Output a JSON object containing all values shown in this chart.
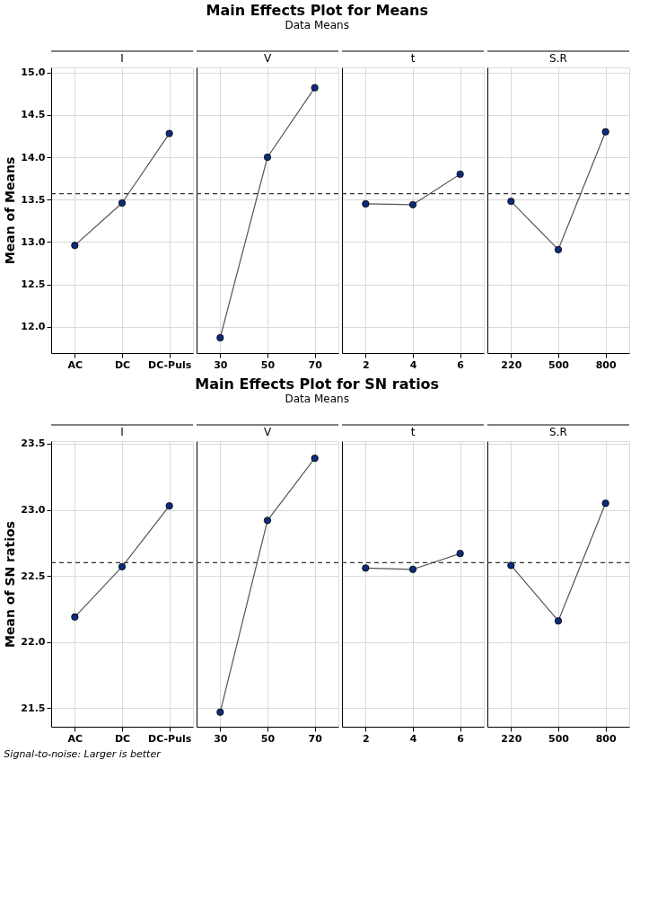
{
  "chart_data": [
    {
      "type": "line",
      "title": "Main Effects Plot for Means",
      "subtitle": "Data Means",
      "ylabel": "Mean of Means",
      "categories": [
        "AC",
        "DC",
        "DC-Puls",
        "30",
        "50",
        "70",
        "2",
        "4",
        "6",
        "220",
        "500",
        "800"
      ],
      "series": [
        {
          "color": "#0b2d7a",
          "values": [
            12.96,
            13.46,
            14.28,
            null,
            null,
            null,
            null,
            null,
            null,
            null,
            null,
            null
          ]
        },
        {
          "color": "#0b2d7a",
          "values": [
            null,
            null,
            null,
            11.87,
            14.0,
            14.82,
            null,
            null,
            null,
            null,
            null,
            null
          ]
        },
        {
          "color": "#0b2d7a",
          "values": [
            null,
            null,
            null,
            null,
            null,
            null,
            13.45,
            13.44,
            13.8,
            null,
            null,
            null
          ]
        },
        {
          "color": "#0b2d7a",
          "values": [
            null,
            null,
            null,
            null,
            null,
            null,
            null,
            null,
            null,
            13.48,
            12.91,
            14.3
          ]
        }
      ],
      "ylim": [
        11.69,
        15.06
      ],
      "yticks": [
        {
          "value": 12,
          "label": "12.0"
        },
        12.5,
        {
          "value": 13,
          "label": "13.0"
        },
        13.5,
        {
          "value": 14,
          "label": "14.0"
        },
        14.5,
        {
          "value": 15,
          "label": "15.0"
        }
      ],
      "grid": true,
      "marker": "circle",
      "line_style": "solid",
      "ref_lines": [
        {
          "axis": "y",
          "value": 13.57,
          "color": "#333333",
          "line_style": "dashed"
        }
      ],
      "annotations": [
        "I",
        "V",
        "t",
        "S.R"
      ]
    },
    {
      "type": "line",
      "title": "Main Effects Plot for SN ratios",
      "subtitle": "Data Means",
      "ylabel": "Mean of SN ratios",
      "categories": [
        "AC",
        "DC",
        "DC-Puls",
        "30",
        "50",
        "70",
        "2",
        "4",
        "6",
        "220",
        "500",
        "800"
      ],
      "series": [
        {
          "color": "#0b2d7a",
          "values": [
            22.19,
            22.57,
            23.03,
            null,
            null,
            null,
            null,
            null,
            null,
            null,
            null,
            null
          ]
        },
        {
          "color": "#0b2d7a",
          "values": [
            null,
            null,
            null,
            21.47,
            22.92,
            23.39,
            null,
            null,
            null,
            null,
            null,
            null
          ]
        },
        {
          "color": "#0b2d7a",
          "values": [
            null,
            null,
            null,
            null,
            null,
            null,
            22.56,
            22.55,
            22.67,
            null,
            null,
            null
          ]
        },
        {
          "color": "#0b2d7a",
          "values": [
            null,
            null,
            null,
            null,
            null,
            null,
            null,
            null,
            null,
            22.58,
            22.16,
            23.05
          ]
        }
      ],
      "ylim": [
        21.36,
        23.52
      ],
      "yticks": [
        21.5,
        {
          "value": 22,
          "label": "22.0"
        },
        22.5,
        {
          "value": 23,
          "label": "23.0"
        },
        23.5
      ],
      "grid": true,
      "marker": "circle",
      "line_style": "solid",
      "ref_lines": [
        {
          "axis": "y",
          "value": 22.6,
          "color": "#333333",
          "line_style": "dashed"
        }
      ],
      "annotations": [
        "I",
        "V",
        "t",
        "S.R",
        "Signal-to-noise: Larger is better"
      ]
    }
  ]
}
